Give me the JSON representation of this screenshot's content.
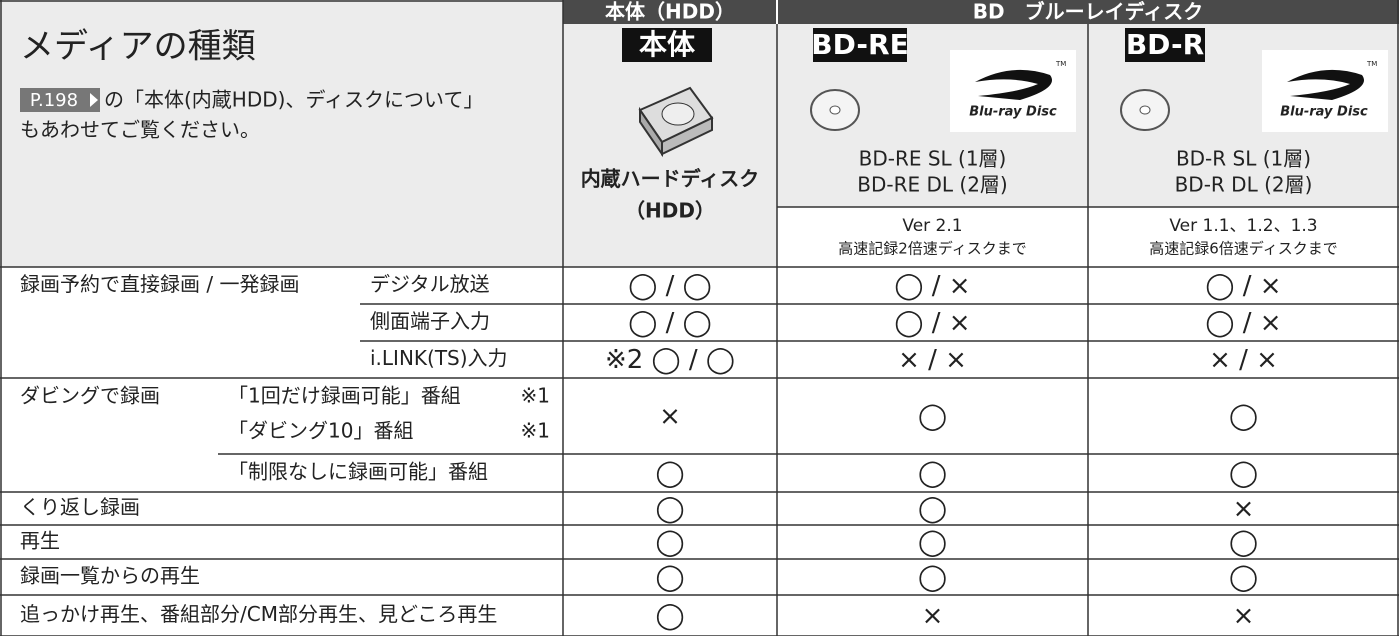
{
  "header": {
    "title": "メディアの種類",
    "link": "P.198",
    "note_1": "の「本体(内蔵HDD)、ディスクについて」",
    "note_2": "もあわせてご覧ください。"
  },
  "groups": [
    "本体（HDD）",
    "BD　ブルーレイディスク"
  ],
  "columns": [
    {
      "badge": "本体",
      "name": [
        "内蔵ハードディスク",
        "（HDD）"
      ]
    },
    {
      "badge": "BD-RE",
      "logo": "Blu-ray Disc",
      "tm": "TM",
      "name": [
        "BD-RE SL (1層)",
        "BD-RE DL (2層)"
      ],
      "version": "Ver 2.1",
      "speed": "高速記録2倍速ディスクまで"
    },
    {
      "badge": "BD-R",
      "logo": "Blu-ray Disc",
      "tm": "TM",
      "name": [
        "BD-R SL (1層)",
        "BD-R DL (2層)"
      ],
      "version": "Ver 1.1、1.2、1.3",
      "speed": "高速記録6倍速ディスクまで"
    }
  ],
  "table": {
    "rows": [
      {
        "label": "録画予約で直接録画 / 一発録画",
        "sub": [
          "デジタル放送"
        ],
        "cells": [
          "◯ / ◯",
          "◯ / ×",
          "◯ / ×"
        ]
      },
      {
        "sub": [
          "側面端子入力"
        ],
        "cells": [
          "◯ / ◯",
          "◯ / ×",
          "◯ / ×"
        ]
      },
      {
        "sub": [
          "i.LINK(TS)入力"
        ],
        "cells": [
          "※2 ◯ / ◯",
          "× / ×",
          "× / ×"
        ]
      },
      {
        "label": "ダビングで録画",
        "sub": [
          "「1回だけ録画可能」番組",
          "「ダビング10」番組"
        ],
        "notes": [
          "※1",
          "※1"
        ],
        "cells": [
          "×",
          "◯",
          "◯"
        ]
      },
      {
        "sub": [
          "「制限なしに録画可能」番組"
        ],
        "cells": [
          "◯",
          "◯",
          "◯"
        ]
      },
      {
        "label": "くり返し録画",
        "cells": [
          "◯",
          "◯",
          "×"
        ]
      },
      {
        "label": "再生",
        "cells": [
          "◯",
          "◯",
          "◯"
        ]
      },
      {
        "label": "録画一覧からの再生",
        "cells": [
          "◯",
          "◯",
          "◯"
        ]
      },
      {
        "label": "追っかけ再生、番組部分/CM部分再生、見どころ再生",
        "cells": [
          "◯",
          "×",
          "×"
        ]
      }
    ]
  }
}
